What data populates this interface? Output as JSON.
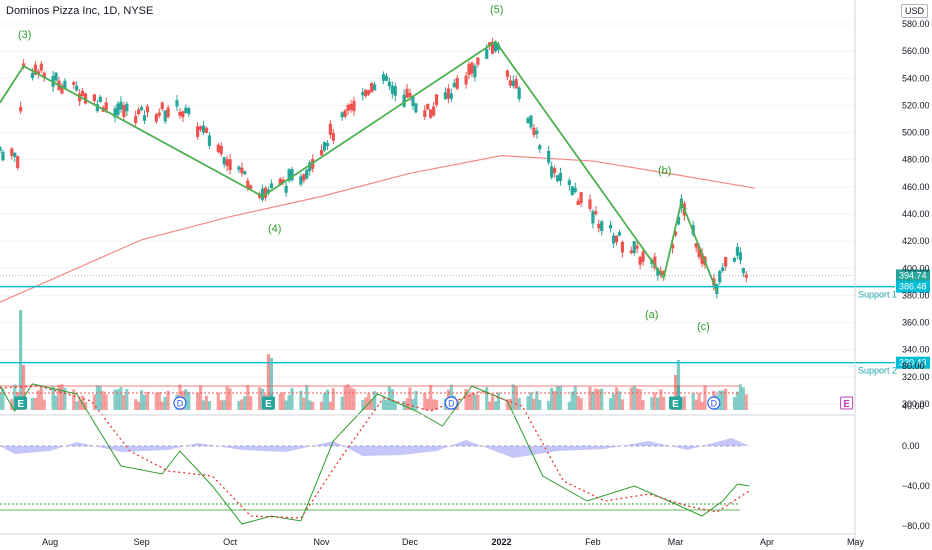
{
  "header": {
    "title": "Dominos Pizza Inc, 1D, NYSE",
    "currency": "USD"
  },
  "price_axis_labels": [
    "580.00",
    "560.00",
    "540.00",
    "520.00",
    "500.00",
    "480.00",
    "460.00",
    "440.00",
    "420.00",
    "400.00",
    "380.00",
    "360.00",
    "340.00",
    "320.00",
    "300.00"
  ],
  "osc_axis_labels": [
    "80.00",
    "40.00",
    "0.00",
    "−40.00",
    "−80.00"
  ],
  "x_axis_labels": [
    "Aug",
    "Sep",
    "Oct",
    "Nov",
    "Dec",
    "2022",
    "Feb",
    "Mar",
    "Apr",
    "May"
  ],
  "price_tags": {
    "last": "394.74",
    "support1": "386.48",
    "support2": "330.43"
  },
  "support_labels": {
    "s1": "Support 1",
    "s2": "Support 2"
  },
  "wave_labels": {
    "w3": "(3)",
    "w4": "(4)",
    "w5": "(5)",
    "wa": "(a)",
    "wb": "(b)",
    "wc": "(c)"
  },
  "colors": {
    "up": "#26a69a",
    "down": "#ef5350",
    "wave": "#4caf50",
    "support": "#00bcd4",
    "ma": "#f28b82",
    "osc_fill": "#9598f5"
  },
  "chart_data": {
    "type": "candlestick",
    "symbol": "Dominos Pizza Inc",
    "interval": "1D",
    "exchange": "NYSE",
    "x_range": [
      "2021-07-15",
      "2022-05-10"
    ],
    "price_range": [
      300,
      590
    ],
    "wave_points": [
      {
        "label": "(3)",
        "date": "2021-07-23",
        "price": 549
      },
      {
        "label": "(4)",
        "date": "2021-10-12",
        "price": 453
      },
      {
        "label": "(5)",
        "date": "2021-12-30",
        "price": 567
      },
      {
        "label": "(a)",
        "date": "2022-02-25",
        "price": 393
      },
      {
        "label": "(b)",
        "date": "2022-03-03",
        "price": 449
      },
      {
        "label": "(c)",
        "date": "2022-03-15",
        "price": 383
      }
    ],
    "support_levels": [
      {
        "name": "Support 1",
        "price": 386.48
      },
      {
        "name": "Support 2",
        "price": 330.43
      }
    ],
    "last_price": 394.74,
    "moving_average": [
      {
        "date": "2021-07-15",
        "price": 375
      },
      {
        "date": "2021-09-01",
        "price": 421
      },
      {
        "date": "2021-10-01",
        "price": 438
      },
      {
        "date": "2021-11-01",
        "price": 453
      },
      {
        "date": "2021-12-01",
        "price": 470
      },
      {
        "date": "2022-01-01",
        "price": 483
      },
      {
        "date": "2022-02-01",
        "price": 479
      },
      {
        "date": "2022-03-01",
        "price": 469
      },
      {
        "date": "2022-03-28",
        "price": 459
      }
    ],
    "oscillator_range": [
      -90,
      90
    ],
    "oscillator_levels": [
      60,
      53,
      -58,
      -64
    ],
    "oscillator_main": [
      {
        "date": "2021-07-15",
        "value": 60
      },
      {
        "date": "2021-07-20",
        "value": 35
      },
      {
        "date": "2021-07-26",
        "value": 62
      },
      {
        "date": "2021-08-10",
        "value": 52
      },
      {
        "date": "2021-08-25",
        "value": -20
      },
      {
        "date": "2021-09-08",
        "value": -28
      },
      {
        "date": "2021-09-14",
        "value": -5
      },
      {
        "date": "2021-09-25",
        "value": -40
      },
      {
        "date": "2021-10-05",
        "value": -78
      },
      {
        "date": "2021-10-15",
        "value": -70
      },
      {
        "date": "2021-10-25",
        "value": -75
      },
      {
        "date": "2021-11-05",
        "value": 5
      },
      {
        "date": "2021-11-20",
        "value": 52
      },
      {
        "date": "2021-12-03",
        "value": 35
      },
      {
        "date": "2021-12-12",
        "value": 20
      },
      {
        "date": "2021-12-22",
        "value": 60
      },
      {
        "date": "2022-01-03",
        "value": 45
      },
      {
        "date": "2022-01-15",
        "value": -30
      },
      {
        "date": "2022-01-30",
        "value": -55
      },
      {
        "date": "2022-02-15",
        "value": -40
      },
      {
        "date": "2022-03-01",
        "value": -58
      },
      {
        "date": "2022-03-10",
        "value": -70
      },
      {
        "date": "2022-03-17",
        "value": -55
      },
      {
        "date": "2022-03-22",
        "value": -38
      },
      {
        "date": "2022-03-26",
        "value": -40
      }
    ],
    "oscillator_signal": [
      {
        "date": "2021-07-15",
        "value": 58
      },
      {
        "date": "2021-07-28",
        "value": 60
      },
      {
        "date": "2021-08-15",
        "value": 45
      },
      {
        "date": "2021-08-28",
        "value": -5
      },
      {
        "date": "2021-09-10",
        "value": -25
      },
      {
        "date": "2021-09-25",
        "value": -30
      },
      {
        "date": "2021-10-08",
        "value": -70
      },
      {
        "date": "2021-10-25",
        "value": -72
      },
      {
        "date": "2021-11-08",
        "value": -10
      },
      {
        "date": "2021-11-22",
        "value": 48
      },
      {
        "date": "2021-12-08",
        "value": 35
      },
      {
        "date": "2021-12-25",
        "value": 55
      },
      {
        "date": "2022-01-08",
        "value": 40
      },
      {
        "date": "2022-01-22",
        "value": -35
      },
      {
        "date": "2022-02-05",
        "value": -55
      },
      {
        "date": "2022-02-20",
        "value": -48
      },
      {
        "date": "2022-03-05",
        "value": -60
      },
      {
        "date": "2022-03-15",
        "value": -66
      },
      {
        "date": "2022-03-26",
        "value": -45
      }
    ],
    "events": [
      {
        "type": "E",
        "date": "2021-07-22"
      },
      {
        "type": "D",
        "date": "2021-09-14"
      },
      {
        "type": "E",
        "date": "2021-10-14"
      },
      {
        "type": "D",
        "date": "2021-12-15"
      },
      {
        "type": "E",
        "date": "2022-03-01"
      },
      {
        "type": "D",
        "date": "2022-03-14"
      },
      {
        "type": "E",
        "date": "2022-04-28"
      }
    ]
  }
}
